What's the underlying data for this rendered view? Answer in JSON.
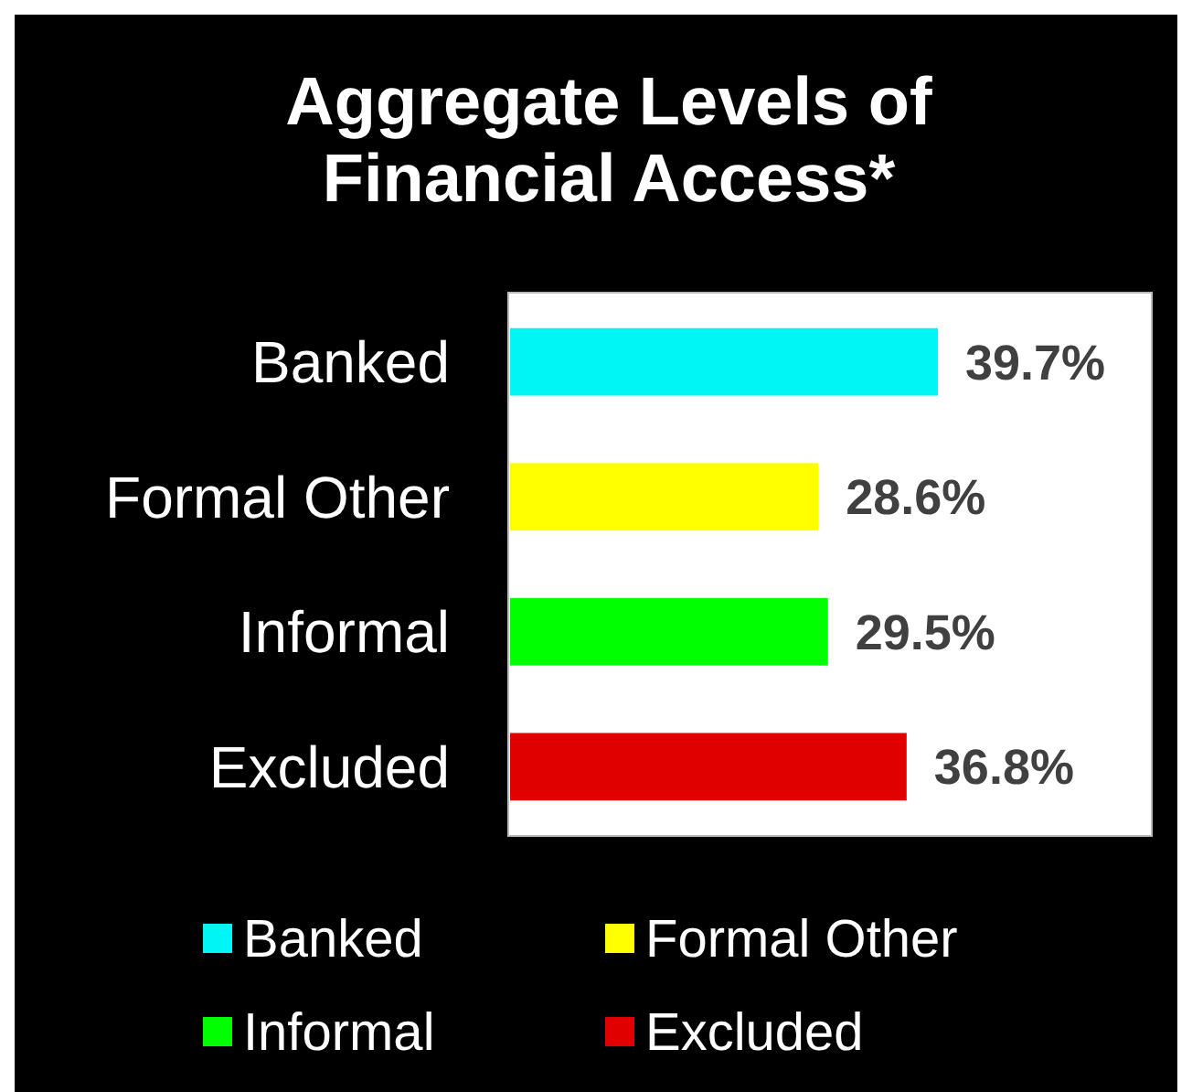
{
  "chart_data": {
    "type": "bar",
    "orientation": "horizontal",
    "title": "Aggregate Levels of Financial Access*",
    "categories": [
      "Banked",
      "Formal Other",
      "Informal",
      "Excluded"
    ],
    "series": [
      {
        "name": "Banked",
        "color": "#00f5f5",
        "values": [
          39.7,
          null,
          null,
          null
        ],
        "value_labels": [
          "39.7%",
          null,
          null,
          null
        ]
      },
      {
        "name": "Formal Other",
        "color": "#ffff00",
        "values": [
          null,
          28.6,
          null,
          null
        ],
        "value_labels": [
          null,
          "28.6%",
          null,
          null
        ]
      },
      {
        "name": "Informal",
        "color": "#00ff00",
        "values": [
          null,
          null,
          29.5,
          null
        ],
        "value_labels": [
          null,
          null,
          "29.5%",
          null
        ]
      },
      {
        "name": "Excluded",
        "color": "#e00000",
        "values": [
          null,
          null,
          null,
          36.8
        ],
        "value_labels": [
          null,
          null,
          null,
          "36.8%"
        ]
      }
    ],
    "legend": "bottom"
  }
}
